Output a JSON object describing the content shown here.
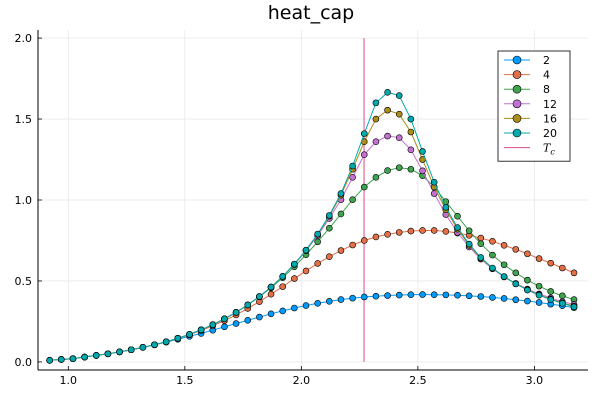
{
  "chart_data": {
    "type": "scatter",
    "title": "heat_cap",
    "xlabel": "",
    "ylabel": "",
    "xlim": [
      0.87,
      3.23
    ],
    "ylim": [
      -0.05,
      2.05
    ],
    "x_ticks": [
      "1.0",
      "1.5",
      "2.0",
      "2.5",
      "3.0"
    ],
    "y_ticks": [
      "0.0",
      "0.5",
      "1.0",
      "1.5",
      "2.0"
    ],
    "grid": true,
    "legend_position": "top-right",
    "x": [
      0.92,
      0.97,
      1.02,
      1.07,
      1.12,
      1.17,
      1.22,
      1.27,
      1.32,
      1.37,
      1.42,
      1.47,
      1.52,
      1.57,
      1.62,
      1.67,
      1.72,
      1.77,
      1.82,
      1.87,
      1.92,
      1.97,
      2.02,
      2.07,
      2.12,
      2.17,
      2.22,
      2.27,
      2.32,
      2.37,
      2.42,
      2.47,
      2.52,
      2.57,
      2.62,
      2.67,
      2.72,
      2.77,
      2.82,
      2.87,
      2.92,
      2.97,
      3.02,
      3.07,
      3.12,
      3.17
    ],
    "series": [
      {
        "name": "2",
        "color": "#009AFA",
        "values": [
          0.01,
          0.015,
          0.02,
          0.03,
          0.04,
          0.05,
          0.062,
          0.075,
          0.09,
          0.105,
          0.122,
          0.14,
          0.158,
          0.176,
          0.196,
          0.217,
          0.237,
          0.257,
          0.277,
          0.297,
          0.315,
          0.333,
          0.348,
          0.362,
          0.374,
          0.385,
          0.394,
          0.401,
          0.406,
          0.41,
          0.413,
          0.415,
          0.416,
          0.415,
          0.414,
          0.412,
          0.408,
          0.404,
          0.398,
          0.392,
          0.384,
          0.376,
          0.367,
          0.357,
          0.347,
          0.335
        ]
      },
      {
        "name": "4",
        "color": "#E36F47",
        "values": [
          0.01,
          0.015,
          0.02,
          0.03,
          0.04,
          0.05,
          0.062,
          0.075,
          0.09,
          0.106,
          0.124,
          0.145,
          0.168,
          0.194,
          0.223,
          0.255,
          0.29,
          0.33,
          0.372,
          0.418,
          0.465,
          0.515,
          0.562,
          0.608,
          0.65,
          0.688,
          0.722,
          0.75,
          0.772,
          0.788,
          0.8,
          0.808,
          0.812,
          0.812,
          0.806,
          0.796,
          0.782,
          0.765,
          0.745,
          0.72,
          0.695,
          0.668,
          0.638,
          0.61,
          0.58,
          0.55
        ]
      },
      {
        "name": "8",
        "color": "#3EA44E",
        "values": [
          0.01,
          0.015,
          0.02,
          0.03,
          0.04,
          0.05,
          0.062,
          0.075,
          0.09,
          0.106,
          0.124,
          0.146,
          0.17,
          0.198,
          0.23,
          0.266,
          0.306,
          0.352,
          0.402,
          0.458,
          0.52,
          0.588,
          0.662,
          0.742,
          0.826,
          0.914,
          1.002,
          1.08,
          1.14,
          1.182,
          1.2,
          1.19,
          1.15,
          1.08,
          0.99,
          0.9,
          0.81,
          0.73,
          0.66,
          0.6,
          0.55,
          0.505,
          0.468,
          0.435,
          0.408,
          0.385
        ]
      },
      {
        "name": "12",
        "color": "#C271D2",
        "values": [
          0.01,
          0.015,
          0.02,
          0.03,
          0.04,
          0.05,
          0.062,
          0.075,
          0.09,
          0.106,
          0.124,
          0.146,
          0.17,
          0.198,
          0.23,
          0.266,
          0.306,
          0.352,
          0.404,
          0.462,
          0.528,
          0.602,
          0.686,
          0.78,
          0.886,
          1.002,
          1.14,
          1.28,
          1.36,
          1.395,
          1.385,
          1.31,
          1.18,
          1.04,
          0.91,
          0.8,
          0.71,
          0.635,
          0.575,
          0.525,
          0.485,
          0.45,
          0.42,
          0.395,
          0.372,
          0.355
        ]
      },
      {
        "name": "16",
        "color": "#AC8D18",
        "values": [
          0.01,
          0.015,
          0.02,
          0.03,
          0.04,
          0.05,
          0.062,
          0.075,
          0.09,
          0.106,
          0.124,
          0.146,
          0.17,
          0.198,
          0.23,
          0.266,
          0.306,
          0.352,
          0.404,
          0.462,
          0.528,
          0.604,
          0.69,
          0.788,
          0.9,
          1.03,
          1.19,
          1.36,
          1.5,
          1.555,
          1.53,
          1.42,
          1.25,
          1.08,
          0.94,
          0.82,
          0.72,
          0.64,
          0.578,
          0.526,
          0.482,
          0.446,
          0.415,
          0.388,
          0.365,
          0.345
        ]
      },
      {
        "name": "20",
        "color": "#00A9AD",
        "values": [
          0.01,
          0.015,
          0.02,
          0.03,
          0.04,
          0.05,
          0.062,
          0.075,
          0.09,
          0.106,
          0.124,
          0.146,
          0.17,
          0.198,
          0.23,
          0.266,
          0.306,
          0.352,
          0.404,
          0.462,
          0.528,
          0.604,
          0.69,
          0.79,
          0.905,
          1.04,
          1.21,
          1.41,
          1.6,
          1.665,
          1.645,
          1.5,
          1.3,
          1.11,
          0.955,
          0.83,
          0.728,
          0.645,
          0.58,
          0.527,
          0.482,
          0.444,
          0.412,
          0.385,
          0.362,
          0.34
        ]
      }
    ],
    "reference_line": {
      "label": "T_c",
      "x": 2.269,
      "color": "#DB4A8C",
      "y_range": [
        0.0,
        2.0
      ]
    }
  }
}
